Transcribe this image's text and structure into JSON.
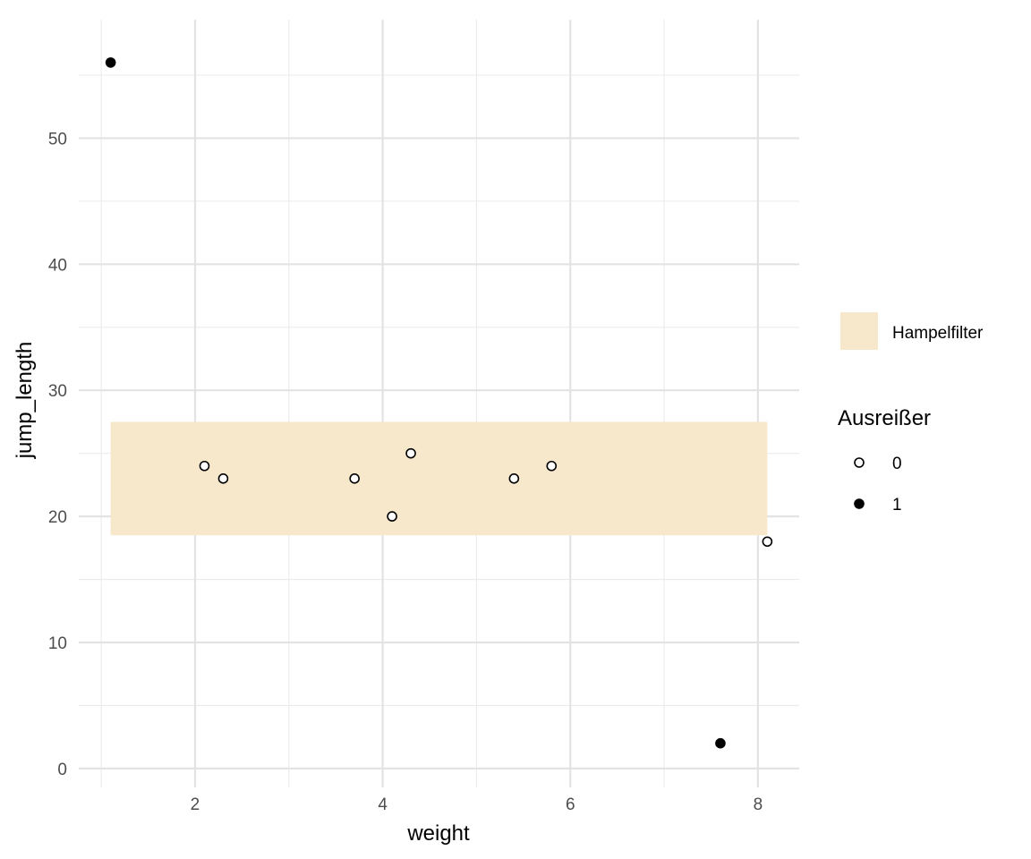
{
  "chart_data": {
    "type": "scatter",
    "xlabel": "weight",
    "ylabel": "jump_length",
    "xlim": [
      0.76,
      8.44
    ],
    "ylim": [
      -1.5,
      59.4
    ],
    "x_ticks": [
      2,
      4,
      6,
      8
    ],
    "y_ticks": [
      0,
      10,
      20,
      30,
      40,
      50
    ],
    "x_minor_ticks": [
      1,
      3,
      5,
      7
    ],
    "y_minor_ticks": [
      5,
      15,
      25,
      35,
      45,
      55
    ],
    "grid": true,
    "band": {
      "label": "Hampelfilter",
      "x_range": [
        1.1,
        8.1
      ],
      "y_range": [
        18.5,
        27.5
      ],
      "color": "#f7e7cb"
    },
    "legend": {
      "position": "right",
      "title": "Ausreißer",
      "entries": [
        {
          "label": "0",
          "filled": false
        },
        {
          "label": "1",
          "filled": true
        }
      ]
    },
    "series": [
      {
        "name": "0",
        "filled": false,
        "points": [
          [
            2.1,
            24
          ],
          [
            2.3,
            23
          ],
          [
            3.7,
            23
          ],
          [
            4.1,
            20
          ],
          [
            4.3,
            25
          ],
          [
            5.4,
            23
          ],
          [
            5.8,
            24
          ],
          [
            8.1,
            18
          ]
        ]
      },
      {
        "name": "1",
        "filled": true,
        "points": [
          [
            1.1,
            56
          ],
          [
            7.6,
            2
          ]
        ]
      }
    ]
  }
}
